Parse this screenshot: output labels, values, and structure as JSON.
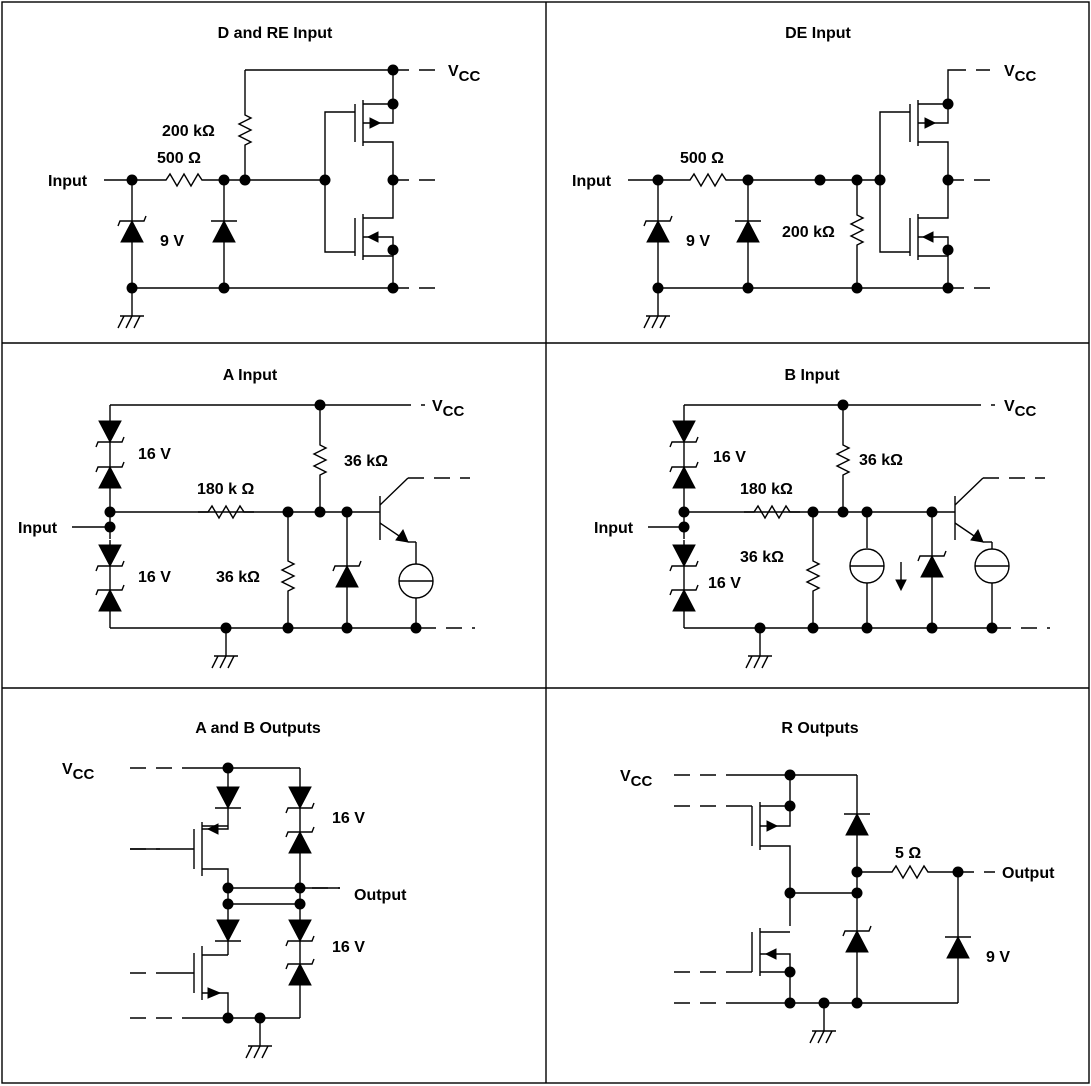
{
  "panels": {
    "d_re": {
      "title": "D and RE Input",
      "vcc": "V",
      "vcc_sub": "CC",
      "r_pullup": "200 kΩ",
      "r_series": "500 Ω",
      "input": "Input",
      "zener": "9 V"
    },
    "de": {
      "title": "DE Input",
      "vcc": "V",
      "vcc_sub": "CC",
      "r_series": "500 Ω",
      "r_pulldown": "200 kΩ",
      "input": "Input",
      "zener": "9 V"
    },
    "a_in": {
      "title": "A Input",
      "vcc": "V",
      "vcc_sub": "CC",
      "r_top": "36 kΩ",
      "r_series": "180 k Ω",
      "r_bottom": "36 kΩ",
      "input": "Input",
      "zener_top": "16 V",
      "zener_bottom": "16 V"
    },
    "b_in": {
      "title": "B Input",
      "vcc": "V",
      "vcc_sub": "CC",
      "r_top": "36 kΩ",
      "r_series": "180 kΩ",
      "r_bottom": "36 kΩ",
      "input": "Input",
      "zener_top": "16 V",
      "zener_bottom": "16 V"
    },
    "ab_out": {
      "title": "A and B Outputs",
      "vcc": "V",
      "vcc_sub": "CC",
      "zener_top": "16 V",
      "zener_bottom": "16 V",
      "output": "Output"
    },
    "r_out": {
      "title": "R Outputs",
      "vcc": "V",
      "vcc_sub": "CC",
      "r_series": "5 Ω",
      "output": "Output",
      "zener": "9 V"
    }
  }
}
